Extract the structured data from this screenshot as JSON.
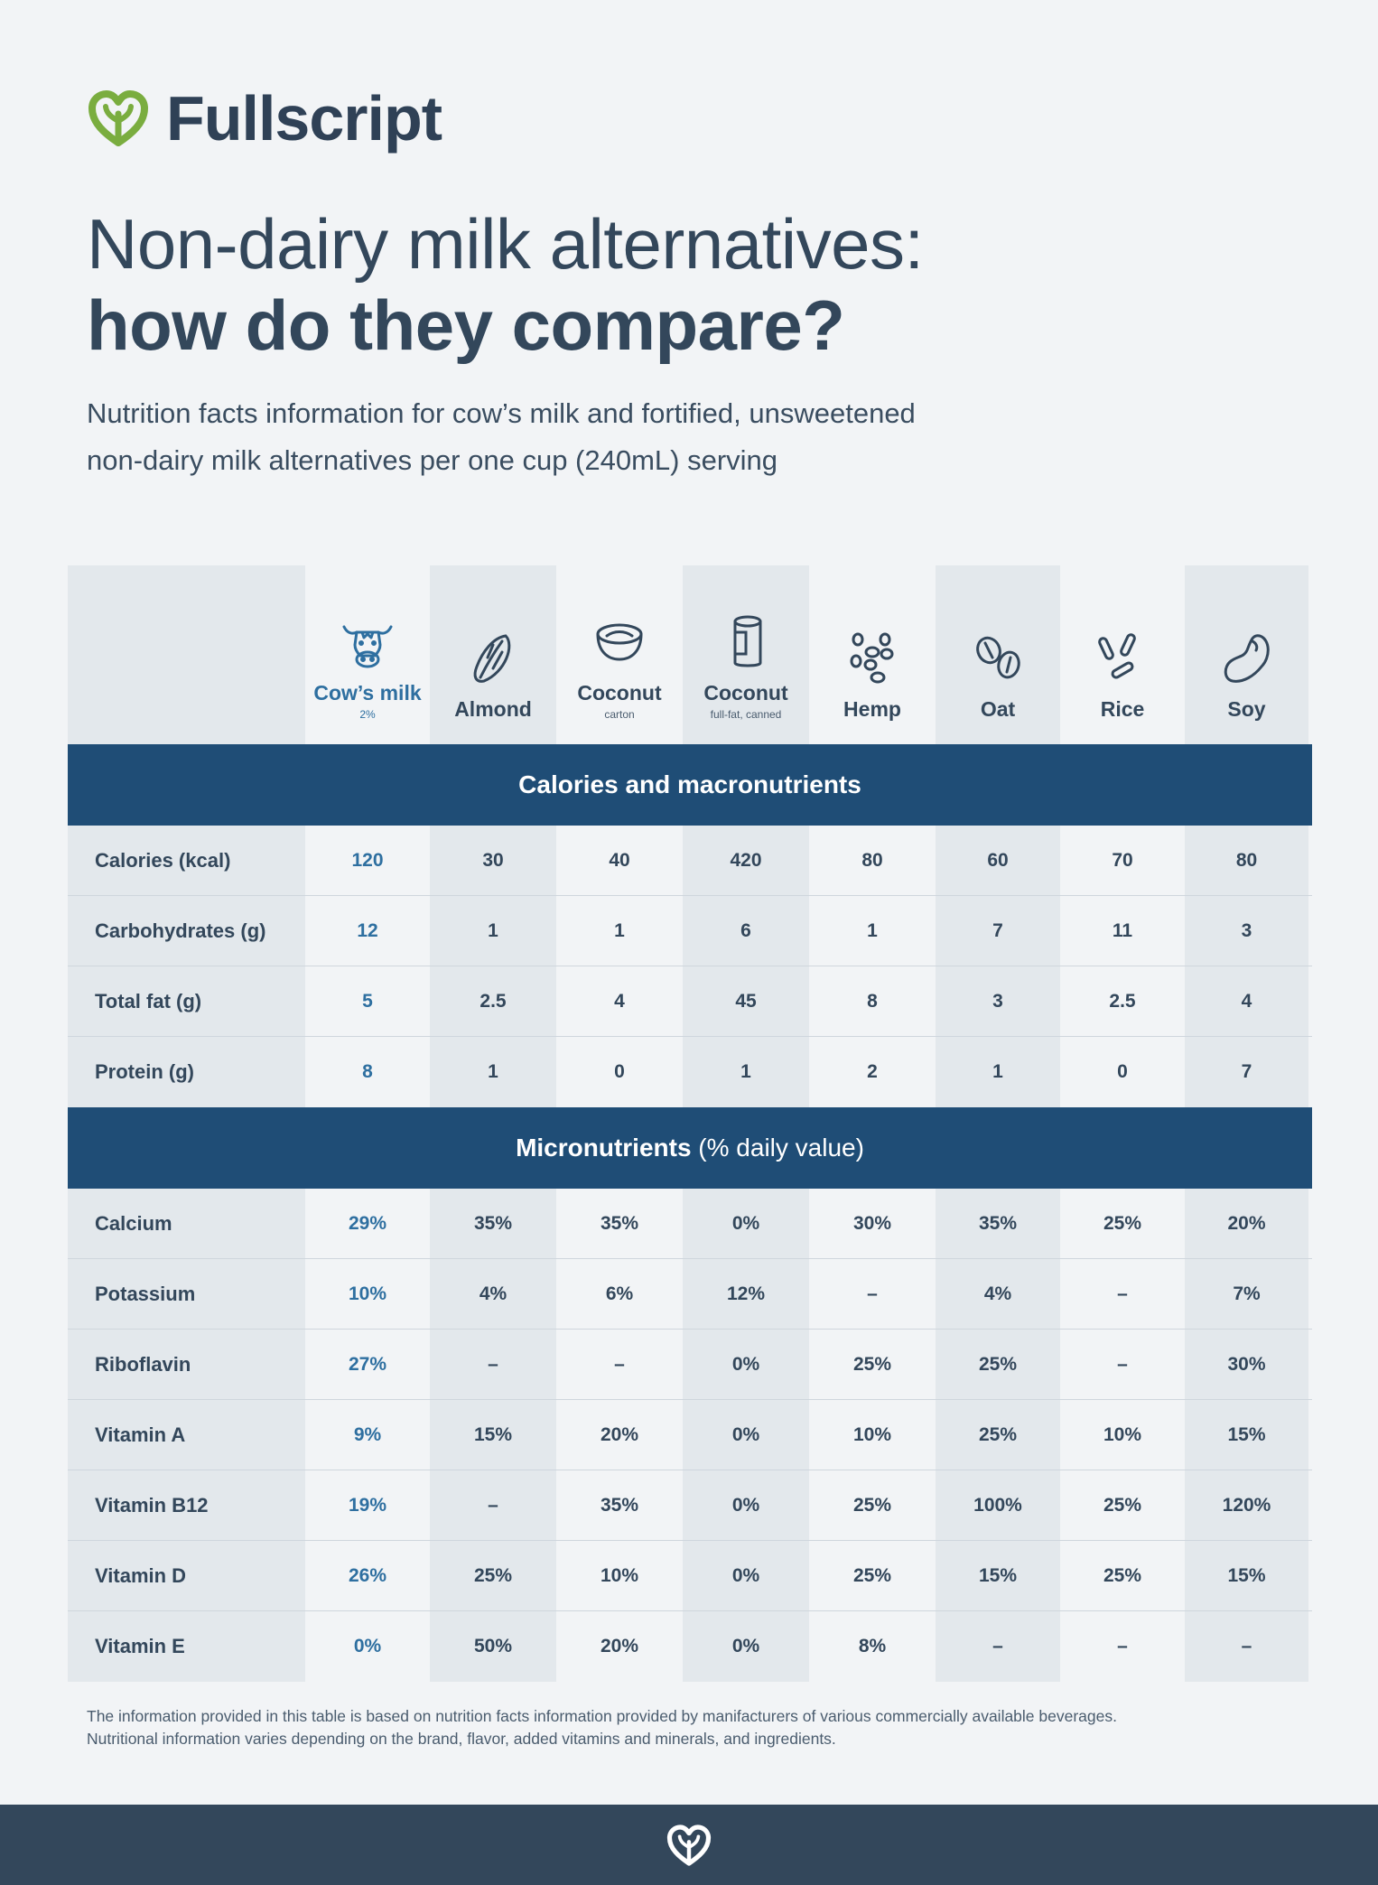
{
  "brand": {
    "name": "Fullscript",
    "logo_icon": "leaf-heart-icon",
    "accent": "#7aad3f"
  },
  "title": {
    "line1": "Non-dairy milk alternatives:",
    "line2": "how do they compare?"
  },
  "subtitle": {
    "line1": "Nutrition facts information for cow’s milk and fortified, unsweetened",
    "line2": "non-dairy milk alternatives per one cup (240mL) serving"
  },
  "colors": {
    "band": "#1f4d76",
    "cow_accent": "#2e6fa0",
    "text": "#33475b",
    "footer": "#33475b"
  },
  "columns": [
    {
      "name": "Cow’s milk",
      "sub": "2%",
      "icon": "cow-icon"
    },
    {
      "name": "Almond",
      "sub": "",
      "icon": "almond-icon"
    },
    {
      "name": "Coconut",
      "sub": "carton",
      "icon": "coconut-bowl-icon"
    },
    {
      "name": "Coconut",
      "sub": "full-fat, canned",
      "icon": "can-icon"
    },
    {
      "name": "Hemp",
      "sub": "",
      "icon": "hemp-seeds-icon"
    },
    {
      "name": "Oat",
      "sub": "",
      "icon": "oat-icon"
    },
    {
      "name": "Rice",
      "sub": "",
      "icon": "rice-icon"
    },
    {
      "name": "Soy",
      "sub": "",
      "icon": "soybean-icon"
    }
  ],
  "sections": [
    {
      "title_bold": "Calories and macronutrients",
      "title_rest": "",
      "rows": [
        {
          "label": "Calories (kcal)",
          "values": [
            "120",
            "30",
            "40",
            "420",
            "80",
            "60",
            "70",
            "80"
          ]
        },
        {
          "label": "Carbohydrates (g)",
          "values": [
            "12",
            "1",
            "1",
            "6",
            "1",
            "7",
            "11",
            "3"
          ]
        },
        {
          "label": "Total fat (g)",
          "values": [
            "5",
            "2.5",
            "4",
            "45",
            "8",
            "3",
            "2.5",
            "4"
          ]
        },
        {
          "label": "Protein (g)",
          "values": [
            "8",
            "1",
            "0",
            "1",
            "2",
            "1",
            "0",
            "7"
          ]
        }
      ]
    },
    {
      "title_bold": "Micronutrients",
      "title_rest": " (% daily value)",
      "rows": [
        {
          "label": "Calcium",
          "values": [
            "29%",
            "35%",
            "35%",
            "0%",
            "30%",
            "35%",
            "25%",
            "20%"
          ]
        },
        {
          "label": "Potassium",
          "values": [
            "10%",
            "4%",
            "6%",
            "12%",
            "–",
            "4%",
            "–",
            "7%"
          ]
        },
        {
          "label": "Riboflavin",
          "values": [
            "27%",
            "–",
            "–",
            "0%",
            "25%",
            "25%",
            "–",
            "30%"
          ]
        },
        {
          "label": "Vitamin A",
          "values": [
            "9%",
            "15%",
            "20%",
            "0%",
            "10%",
            "25%",
            "10%",
            "15%"
          ]
        },
        {
          "label": "Vitamin B12",
          "values": [
            "19%",
            "–",
            "35%",
            "0%",
            "25%",
            "100%",
            "25%",
            "120%"
          ]
        },
        {
          "label": "Vitamin D",
          "values": [
            "26%",
            "25%",
            "10%",
            "0%",
            "25%",
            "15%",
            "25%",
            "15%"
          ]
        },
        {
          "label": "Vitamin E",
          "values": [
            "0%",
            "50%",
            "20%",
            "0%",
            "8%",
            "–",
            "–",
            "–"
          ]
        }
      ]
    }
  ],
  "footnote": {
    "line1": "The information provided in this table is based on nutrition facts information provided by manifacturers of various commercially available beverages.",
    "line2": "Nutritional information varies depending on the brand, flavor, added vitamins and minerals, and ingredients."
  },
  "footer": {
    "icon": "leaf-heart-icon"
  }
}
